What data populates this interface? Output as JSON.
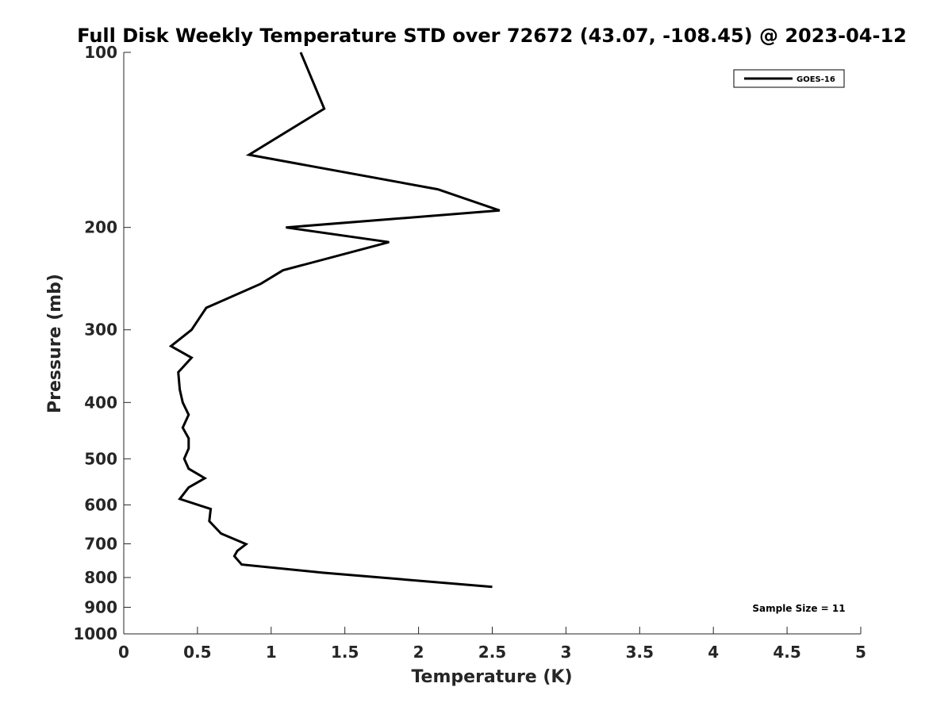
{
  "chart_data": {
    "type": "line",
    "title": "Full Disk Weekly Temperature STD over 72672 (43.07, -108.45) @ 2023-04-12",
    "xlabel": "Temperature (K)",
    "ylabel": "Pressure (mb)",
    "xlim": [
      0,
      5
    ],
    "ylim": [
      100,
      1000
    ],
    "y_scale": "log",
    "y_reversed": true,
    "x_ticks": [
      "0",
      "0.5",
      "1",
      "1.5",
      "2",
      "2.5",
      "3",
      "3.5",
      "4",
      "4.5",
      "5"
    ],
    "y_ticks": [
      "100",
      "200",
      "300",
      "400",
      "500",
      "600",
      "700",
      "800",
      "900",
      "1000"
    ],
    "grid": false,
    "legend_position": "top-right",
    "annotation": "Sample Size = 11",
    "series": [
      {
        "name": "GOES-16",
        "color": "#000000",
        "x": [
          1.2,
          1.36,
          0.85,
          2.13,
          2.55,
          1.1,
          1.8,
          1.08,
          0.93,
          0.56,
          0.46,
          0.32,
          0.46,
          0.37,
          0.38,
          0.4,
          0.44,
          0.4,
          0.44,
          0.44,
          0.41,
          0.44,
          0.55,
          0.44,
          0.38,
          0.59,
          0.58,
          0.66,
          0.83,
          0.77,
          0.75,
          0.8,
          1.35,
          2.5
        ],
        "y": [
          100,
          125,
          150,
          172,
          187,
          200,
          212,
          237,
          250,
          275,
          300,
          320,
          335,
          355,
          380,
          400,
          420,
          442,
          461,
          480,
          500,
          520,
          540,
          560,
          586,
          610,
          640,
          672,
          701,
          720,
          735,
          760,
          785,
          830
        ]
      }
    ]
  }
}
